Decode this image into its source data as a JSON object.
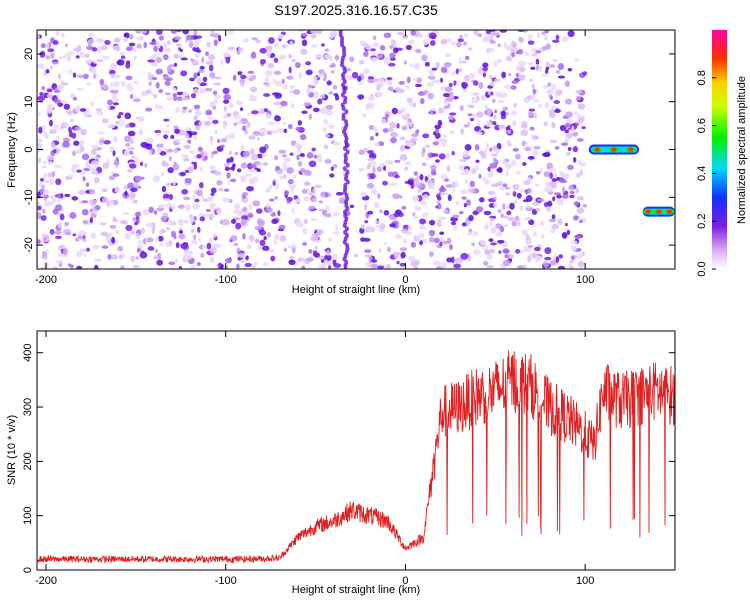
{
  "title": "S197.2025.316.16.57.C35",
  "colors": {
    "snr_line": "#e02020",
    "axis": "#000000",
    "spectral_dot": "#7a1fe6"
  },
  "chart_data": [
    {
      "type": "heatmap",
      "title": "S197.2025.316.16.57.C35",
      "xlabel": "Height of straight line (km)",
      "ylabel": "Frequency (Hz)",
      "xlim": [
        -205,
        150
      ],
      "ylim": [
        -25,
        25
      ],
      "x_ticks": [
        -200,
        -100,
        0,
        100
      ],
      "y_ticks": [
        -20,
        -10,
        0,
        10,
        20
      ],
      "colorbar": {
        "label": "Normalized spectral amplitude",
        "range": [
          0.0,
          1.0
        ],
        "ticks": [
          "0.0",
          "0.2",
          "0.4",
          "0.6",
          "0.8"
        ],
        "colormap": "white-violet-blue-cyan-green-yellow-orange-red-magenta"
      },
      "features": [
        {
          "x_range": [
            -205,
            100
          ],
          "frequency": "broadband",
          "amplitude": 0.15,
          "description_hidden": true
        },
        {
          "x_range": [
            102,
            130
          ],
          "frequency": 0,
          "amplitude": 0.9
        },
        {
          "x_range": [
            132,
            150
          ],
          "frequency": -13,
          "amplitude": 0.9
        }
      ]
    },
    {
      "type": "line",
      "xlabel": "Height of straight line (km)",
      "ylabel": "SNR (10 * v/v)",
      "xlim": [
        -205,
        150
      ],
      "ylim": [
        0,
        440
      ],
      "x_ticks": [
        -200,
        -100,
        0,
        100
      ],
      "y_ticks": [
        0,
        100,
        200,
        300,
        400
      ],
      "series": [
        {
          "x": [
            -205,
            -180,
            -150,
            -120,
            -90,
            -70,
            -60,
            -50,
            -40,
            -30,
            -20,
            -10,
            0,
            10,
            20,
            30,
            40,
            50,
            60,
            70,
            80,
            90,
            100,
            105,
            110,
            120,
            130,
            140,
            150
          ],
          "values": [
            20,
            20,
            20,
            20,
            20,
            22,
            60,
            80,
            90,
            110,
            100,
            90,
            40,
            60,
            290,
            300,
            320,
            330,
            350,
            340,
            300,
            280,
            250,
            230,
            330,
            310,
            320,
            330,
            320
          ]
        }
      ]
    }
  ]
}
